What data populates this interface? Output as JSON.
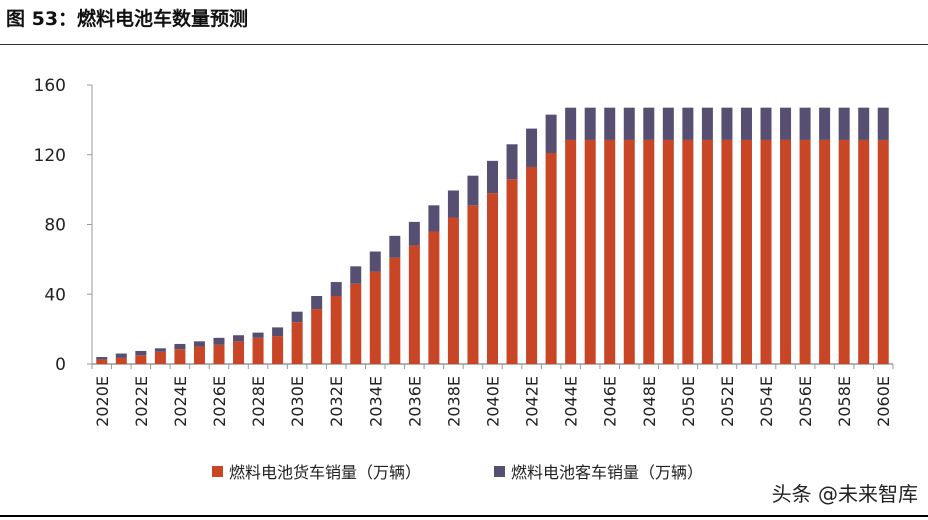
{
  "title": "图 53：燃料电池车数量预测",
  "watermark": "头条 @未来智库",
  "chart_data": {
    "type": "bar",
    "stacked": true,
    "title": "图 53：燃料电池车数量预测",
    "xlabel": "",
    "ylabel": "",
    "ylim": [
      0,
      160
    ],
    "yticks": [
      0,
      40,
      80,
      120,
      160
    ],
    "grid": false,
    "legend_position": "bottom",
    "categories": [
      "2020E",
      "2021E",
      "2022E",
      "2023E",
      "2024E",
      "2025E",
      "2026E",
      "2027E",
      "2028E",
      "2029E",
      "2030E",
      "2031E",
      "2032E",
      "2033E",
      "2034E",
      "2035E",
      "2036E",
      "2037E",
      "2038E",
      "2039E",
      "2040E",
      "2041E",
      "2042E",
      "2043E",
      "2044E",
      "2045E",
      "2046E",
      "2047E",
      "2048E",
      "2049E",
      "2050E",
      "2051E",
      "2052E",
      "2053E",
      "2054E",
      "2055E",
      "2056E",
      "2057E",
      "2058E",
      "2059E",
      "2060E"
    ],
    "tick_labels": [
      "2020E",
      "2022E",
      "2024E",
      "2026E",
      "2028E",
      "2030E",
      "2032E",
      "2034E",
      "2036E",
      "2038E",
      "2040E",
      "2042E",
      "2044E",
      "2046E",
      "2048E",
      "2050E",
      "2052E",
      "2054E",
      "2056E",
      "2058E",
      "2060E"
    ],
    "series": [
      {
        "name": "燃料电池货车销量（万辆）",
        "color": "#c84526",
        "values": [
          2.5,
          3.5,
          5,
          7,
          8.5,
          10,
          11,
          13,
          15,
          16,
          24,
          31.5,
          39,
          46,
          53,
          61,
          68,
          76,
          84,
          91,
          98,
          106,
          113,
          121,
          128.5,
          128.5,
          128.5,
          128.5,
          128.5,
          128.5,
          128.5,
          128.5,
          128.5,
          128.5,
          128.5,
          128.5,
          128.5,
          128.5,
          128.5,
          128.5,
          128.5
        ]
      },
      {
        "name": "燃料电池客车销量（万辆）",
        "color": "#564f72",
        "values": [
          1.5,
          2.5,
          2.5,
          2,
          3,
          3,
          4,
          3.5,
          3,
          5,
          6,
          7.5,
          8,
          10,
          11.5,
          12.5,
          13.5,
          15,
          15.5,
          17,
          18.5,
          20,
          22,
          22,
          18.5,
          18.5,
          18.5,
          18.5,
          18.5,
          18.5,
          18.5,
          18.5,
          18.5,
          18.5,
          18.5,
          18.5,
          18.5,
          18.5,
          18.5,
          18.5,
          18.5
        ]
      }
    ]
  }
}
